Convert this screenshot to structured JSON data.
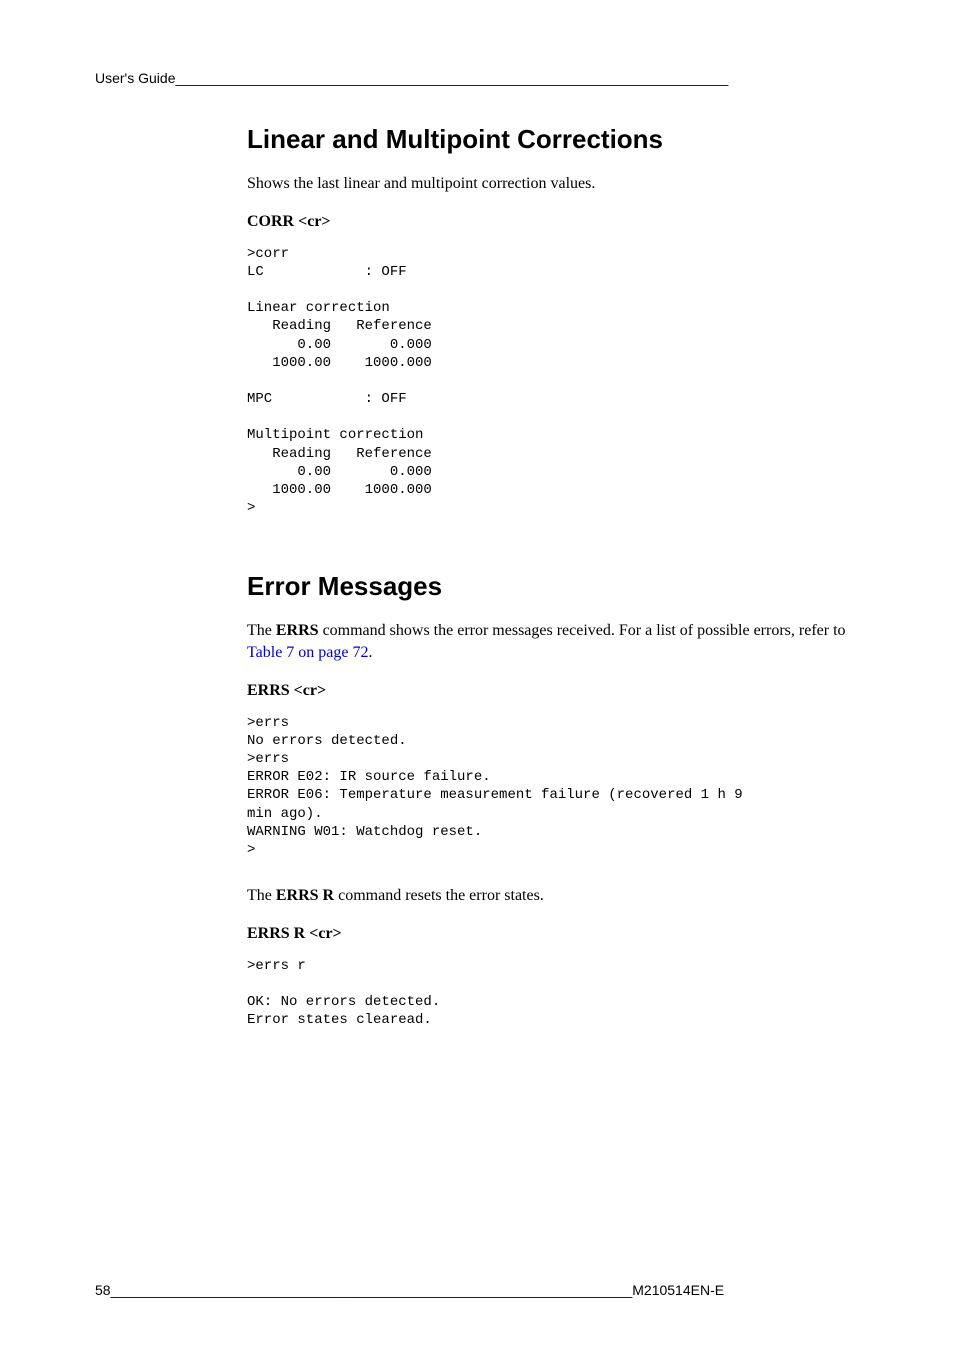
{
  "header": {
    "left": "User's Guide",
    "rule": "_______________________________________________________________________"
  },
  "section1": {
    "title": "Linear and Multipoint Corrections",
    "intro": "Shows the last linear and multipoint correction values.",
    "cmd": "CORR <cr>",
    "code": ">corr\nLC            : OFF\n\nLinear correction\n   Reading   Reference\n      0.00       0.000\n   1000.00    1000.000\n\nMPC           : OFF\n\nMultipoint correction\n   Reading   Reference\n      0.00       0.000\n   1000.00    1000.000\n>"
  },
  "section2": {
    "title": "Error Messages",
    "intro_prefix": "The ",
    "intro_bold": "ERRS",
    "intro_mid": " command shows the error messages received. For a list of possible errors, refer to ",
    "intro_link": "Table 7 on page 72",
    "intro_suffix": ".",
    "cmd1": "ERRS <cr>",
    "code1": ">errs\nNo errors detected.\n>errs\nERROR E02: IR source failure.\nERROR E06: Temperature measurement failure (recovered 1 h 9\nmin ago).\nWARNING W01: Watchdog reset.\n>",
    "reset_prefix": "The ",
    "reset_bold": "ERRS R",
    "reset_suffix": " command resets the error states.",
    "cmd2": "ERRS R <cr>",
    "code2": ">errs r\n\nOK: No errors detected.\nError states clearead."
  },
  "footer": {
    "page": "58",
    "rule": "___________________________________________________________________",
    "docid": "M210514EN-E"
  },
  "styles": {
    "heading_fontsize": 26,
    "body_fontsize": 16,
    "mono_fontsize": 14,
    "link_color": "#0000cc",
    "text_color": "#000000",
    "background_color": "#ffffff"
  }
}
